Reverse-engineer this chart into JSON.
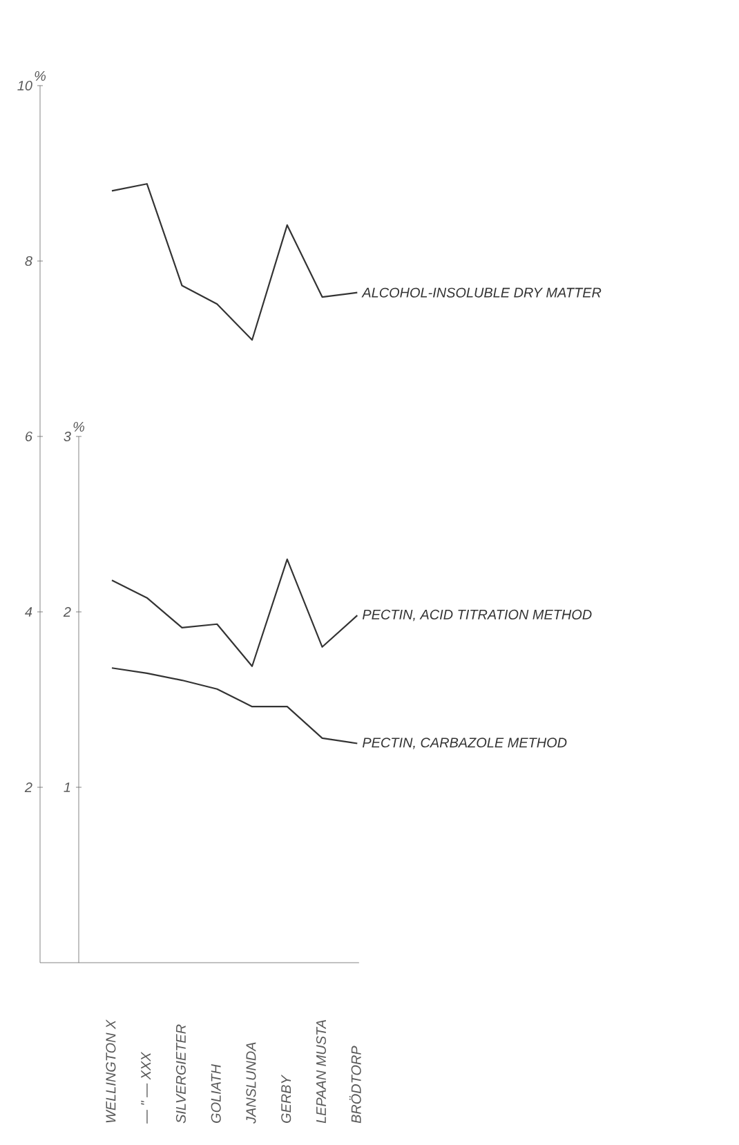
{
  "chart_data": {
    "type": "line",
    "ylabel": "%",
    "y2label": "%",
    "categories": [
      "WELLINGTON X",
      "— \" — XXX",
      "SILVERGIETER",
      "GOLIATH",
      "JANSLUNDA",
      "GERBY",
      "LEPAAN MUSTA",
      "BRÖDTORP"
    ],
    "series": [
      {
        "name": "ALCOHOL-INSOLUBLE DRY MATTER",
        "color": "#333333",
        "values": [
          8.8,
          8.88,
          7.72,
          7.51,
          7.1,
          8.41,
          7.59,
          7.64
        ]
      },
      {
        "name": "PECTIN, ACID TITRATION METHOD",
        "color": "#333333",
        "axis": "y2",
        "values": [
          2.18,
          2.08,
          1.91,
          1.93,
          1.69,
          2.3,
          1.8,
          1.98
        ]
      },
      {
        "name": "PECTIN, CARBAZOLE METHOD",
        "color": "#333333",
        "axis": "y2",
        "values": [
          1.68,
          1.65,
          1.61,
          1.56,
          1.46,
          1.46,
          1.28,
          1.25
        ]
      }
    ],
    "ylim": [
      0,
      10
    ],
    "yticks": [
      2,
      4,
      6,
      8,
      10
    ],
    "y2lim": [
      0,
      3
    ],
    "y2ticks": [
      1,
      2,
      3
    ]
  }
}
